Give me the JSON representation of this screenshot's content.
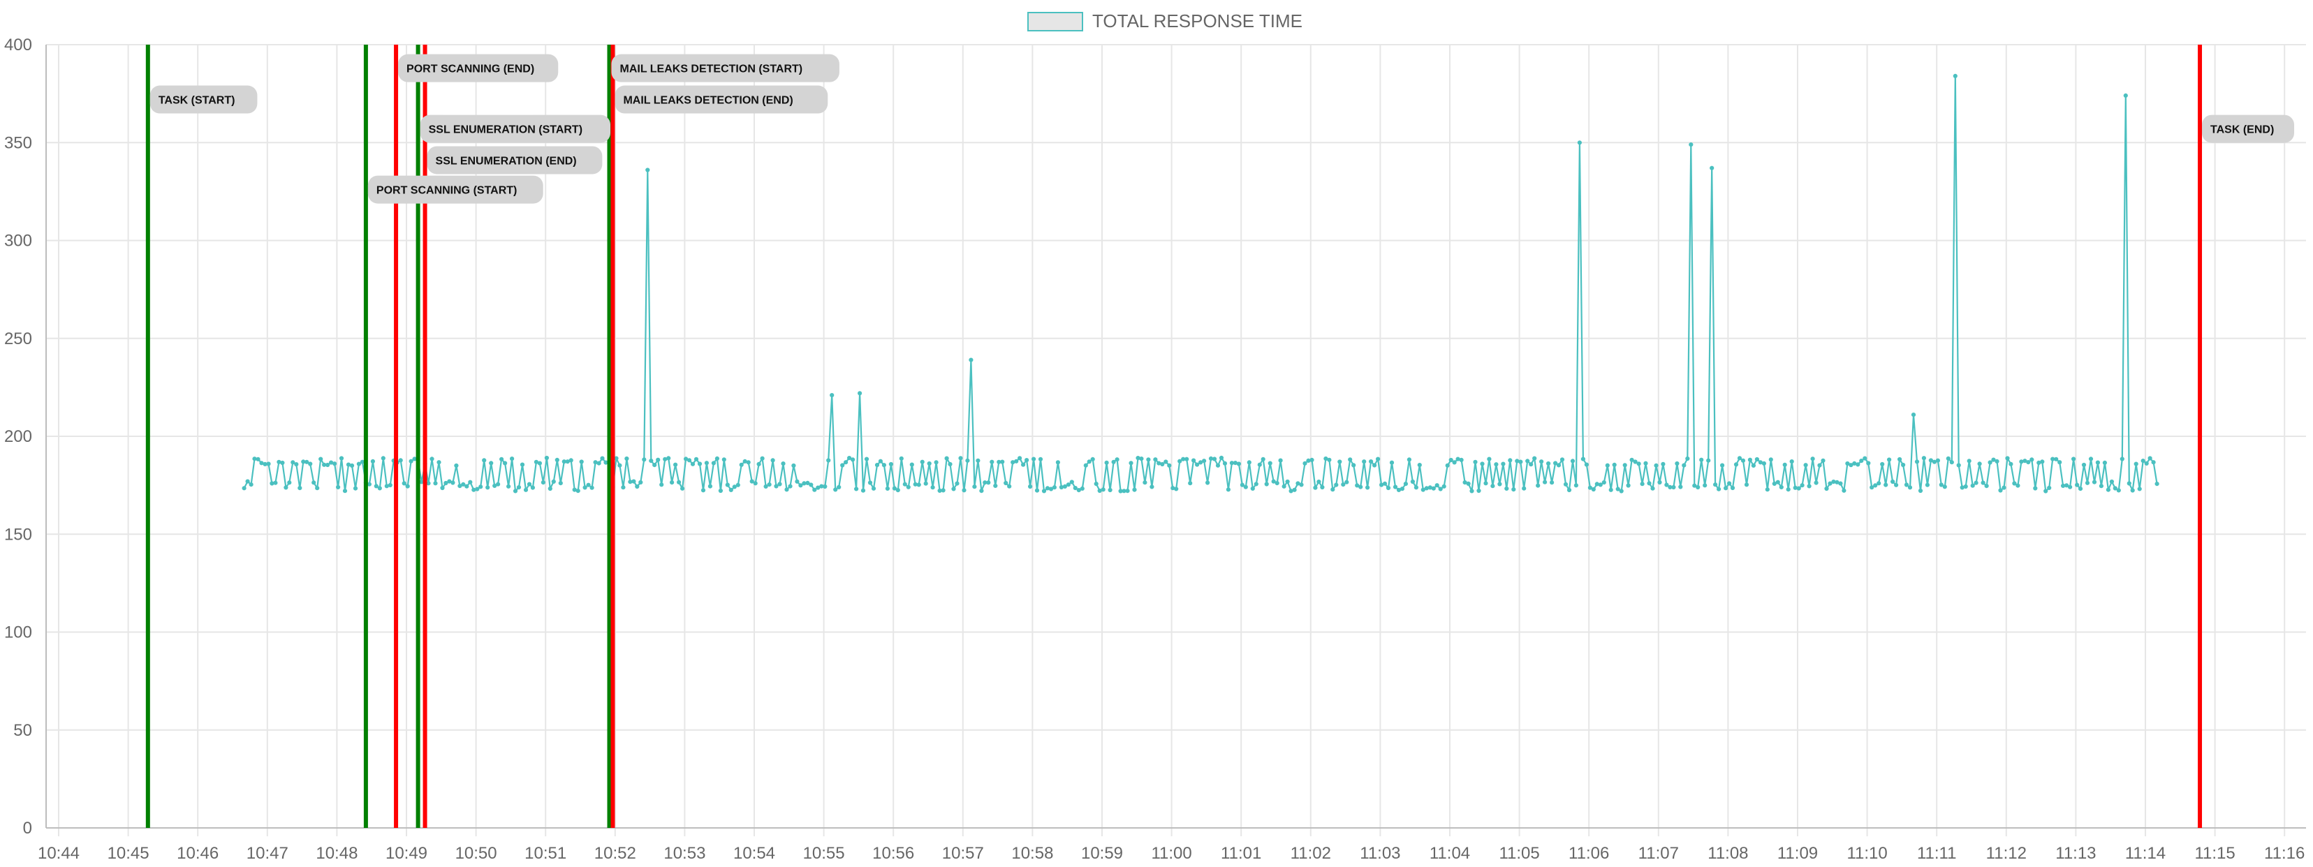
{
  "chart_data": {
    "type": "line",
    "series": [
      {
        "name": "TOTAL RESPONSE TIME",
        "color": "#4bc0c0"
      }
    ],
    "x_axis": {
      "ticks": [
        "10:44",
        "10:45",
        "10:46",
        "10:47",
        "10:48",
        "10:49",
        "10:50",
        "10:51",
        "10:52",
        "10:53",
        "10:54",
        "10:55",
        "10:56",
        "10:57",
        "10:58",
        "10:59",
        "11:00",
        "11:01",
        "11:02",
        "11:03",
        "11:04",
        "11:05",
        "11:06",
        "11:07",
        "11:08",
        "11:09",
        "11:10",
        "11:11",
        "11:12",
        "11:13",
        "11:14",
        "11:15",
        "11:16"
      ]
    },
    "y_axis": {
      "range": [
        0,
        400
      ],
      "ticks": [
        0,
        50,
        100,
        150,
        200,
        250,
        300,
        350,
        400
      ]
    },
    "grid": true,
    "legend_position": "top",
    "baseline": {
      "x_start": "10:46:40",
      "x_end": "11:14:12",
      "y_range": [
        172,
        189
      ]
    },
    "spikes": [
      {
        "x": "10:52:27",
        "y": 336
      },
      {
        "x": "10:55:08",
        "y": 221
      },
      {
        "x": "10:55:30",
        "y": 222
      },
      {
        "x": "10:57:07",
        "y": 239
      },
      {
        "x": "11:05:52",
        "y": 350
      },
      {
        "x": "11:07:28",
        "y": 349
      },
      {
        "x": "11:07:46",
        "y": 337
      },
      {
        "x": "11:10:40",
        "y": 211
      },
      {
        "x": "11:11:15",
        "y": 384
      },
      {
        "x": "11:13:43",
        "y": 374
      }
    ],
    "markers": [
      {
        "x": "10:45:17",
        "color": "#008000",
        "label": "TASK (START)",
        "label_y": 372
      },
      {
        "x": "10:48:25",
        "color": "#008000",
        "label": "PORT SCANNING (START)",
        "label_y": 326
      },
      {
        "x": "10:48:51",
        "color": "#ff0000",
        "label": "PORT SCANNING (END)",
        "label_y": 388
      },
      {
        "x": "10:49:10",
        "color": "#008000",
        "label": "SSL ENUMERATION (START)",
        "label_y": 357
      },
      {
        "x": "10:49:16",
        "color": "#ff0000",
        "label": "SSL ENUMERATION (END)",
        "label_y": 341
      },
      {
        "x": "10:51:55",
        "color": "#008000",
        "label": "MAIL LEAKS DETECTION (START)",
        "label_y": 388
      },
      {
        "x": "10:51:58",
        "color": "#ff0000",
        "label": "MAIL LEAKS DETECTION (END)",
        "label_y": 372
      },
      {
        "x": "11:14:47",
        "color": "#ff0000",
        "label": "TASK (END)",
        "label_y": 357
      }
    ]
  }
}
